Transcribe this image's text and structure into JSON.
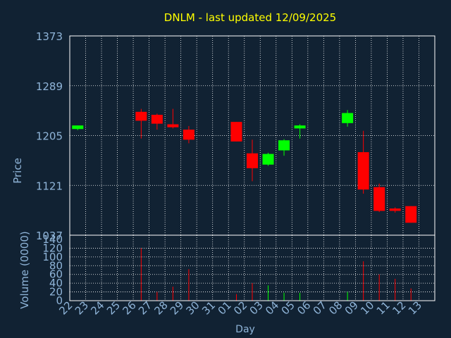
{
  "colors": {
    "background": "#112233",
    "frame": "#ffffff",
    "grid": "#ffffff",
    "title": "#ffff00",
    "axis_text": "#8fb4d8",
    "up": "#00ff00",
    "down": "#ff0000"
  },
  "chart_data": [
    {
      "type": "candlestick",
      "title": "DNLM - last updated 12/09/2025",
      "ylabel": "Price",
      "ylim": [
        1037,
        1373
      ],
      "yticks": [
        "1373",
        "1289",
        "1205",
        "1121",
        "1037"
      ],
      "grid": true,
      "dates": [
        "22",
        "23",
        "24",
        "25",
        "26",
        "27",
        "28",
        "29",
        "30",
        "31",
        "01",
        "02",
        "03",
        "04",
        "05",
        "06",
        "07",
        "08",
        "09",
        "10",
        "11",
        "12",
        "13"
      ],
      "candles": [
        {
          "day": "22",
          "open": 1216,
          "close": 1222,
          "high": 1222,
          "low": 1214
        },
        {
          "day": "26",
          "open": 1245,
          "close": 1230,
          "high": 1250,
          "low": 1200
        },
        {
          "day": "27",
          "open": 1240,
          "close": 1225,
          "high": 1242,
          "low": 1215
        },
        {
          "day": "28",
          "open": 1224,
          "close": 1219,
          "high": 1250,
          "low": 1217
        },
        {
          "day": "29",
          "open": 1215,
          "close": 1198,
          "high": 1221,
          "low": 1192
        },
        {
          "day": "01",
          "open": 1228,
          "close": 1195,
          "high": 1228,
          "low": 1195
        },
        {
          "day": "02",
          "open": 1175,
          "close": 1150,
          "high": 1198,
          "low": 1128
        },
        {
          "day": "03",
          "open": 1156,
          "close": 1174,
          "high": 1176,
          "low": 1154
        },
        {
          "day": "04",
          "open": 1180,
          "close": 1197,
          "high": 1199,
          "low": 1171
        },
        {
          "day": "05",
          "open": 1217,
          "close": 1222,
          "high": 1224,
          "low": 1200
        },
        {
          "day": "08",
          "open": 1226,
          "close": 1243,
          "high": 1248,
          "low": 1220
        },
        {
          "day": "09",
          "open": 1177,
          "close": 1114,
          "high": 1213,
          "low": 1107
        },
        {
          "day": "10",
          "open": 1118,
          "close": 1078,
          "high": 1124,
          "low": 1076
        },
        {
          "day": "11",
          "open": 1082,
          "close": 1078,
          "high": 1084,
          "low": 1075
        },
        {
          "day": "12",
          "open": 1086,
          "close": 1058,
          "high": 1086,
          "low": 1058
        }
      ]
    },
    {
      "type": "bar",
      "ylabel": "Volume (0000)",
      "ylim": [
        0,
        140
      ],
      "yticks": [
        "140",
        "120",
        "100",
        "80",
        "60",
        "40",
        "20",
        "0"
      ],
      "xlabel": "Day",
      "grid": true,
      "bars": [
        {
          "day": "26",
          "value": 120,
          "dir": "down"
        },
        {
          "day": "27",
          "value": 20,
          "dir": "down"
        },
        {
          "day": "28",
          "value": 32,
          "dir": "down"
        },
        {
          "day": "29",
          "value": 72,
          "dir": "down"
        },
        {
          "day": "01",
          "value": 15,
          "dir": "down"
        },
        {
          "day": "02",
          "value": 40,
          "dir": "down"
        },
        {
          "day": "03",
          "value": 35,
          "dir": "up"
        },
        {
          "day": "04",
          "value": 18,
          "dir": "up"
        },
        {
          "day": "05",
          "value": 18,
          "dir": "up"
        },
        {
          "day": "08",
          "value": 20,
          "dir": "up"
        },
        {
          "day": "09",
          "value": 90,
          "dir": "down"
        },
        {
          "day": "10",
          "value": 60,
          "dir": "down"
        },
        {
          "day": "11",
          "value": 50,
          "dir": "down"
        },
        {
          "day": "12",
          "value": 28,
          "dir": "down"
        }
      ]
    }
  ]
}
